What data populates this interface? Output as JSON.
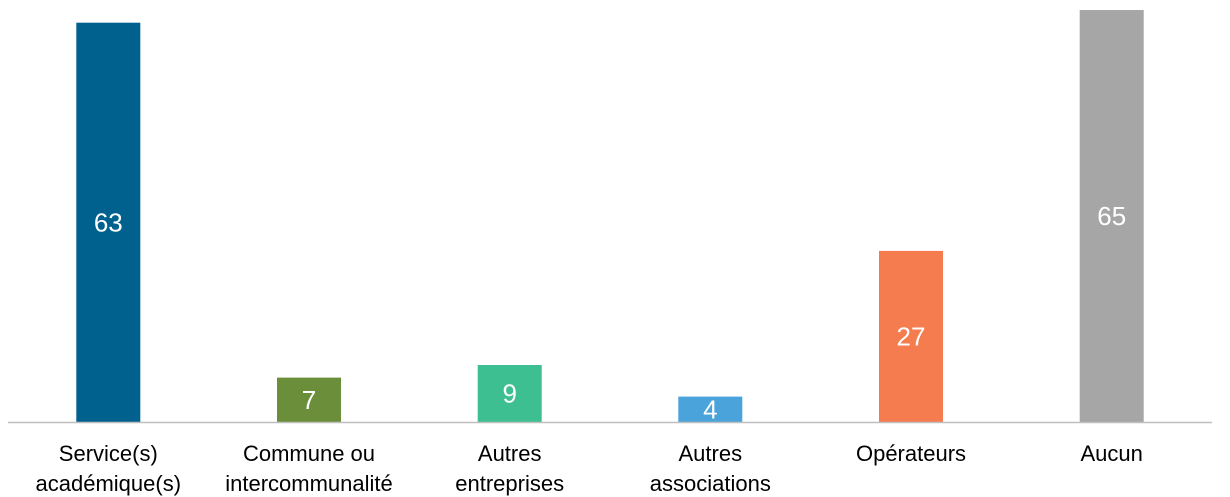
{
  "chart_data": {
    "type": "bar",
    "categories": [
      [
        "Service(s)",
        "académique(s)"
      ],
      [
        "Commune ou",
        "intercommunalité"
      ],
      [
        "Autres",
        "entreprises"
      ],
      [
        "Autres",
        "associations"
      ],
      [
        "Opérateurs"
      ],
      [
        "Aucun"
      ]
    ],
    "values": [
      63,
      7,
      9,
      4,
      27,
      65
    ],
    "colors": [
      "#00618F",
      "#6A8E3A",
      "#3EBF91",
      "#4AA3DB",
      "#F47C4F",
      "#A6A6A6"
    ],
    "ylim": [
      0,
      65
    ],
    "grid": false,
    "legend": "none",
    "data_labels": true,
    "title": "",
    "xlabel": "",
    "ylabel": ""
  }
}
